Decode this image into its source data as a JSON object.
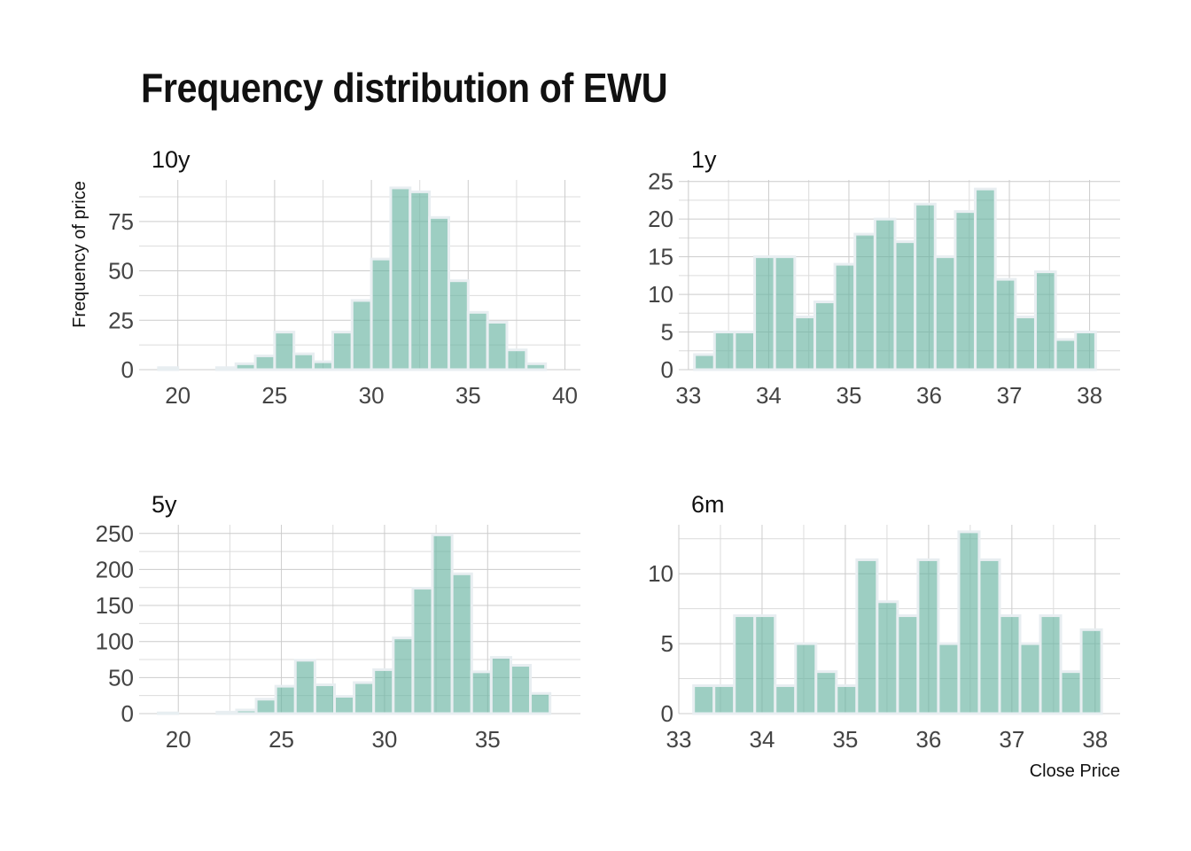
{
  "title": "Frequency distribution of EWU",
  "y_axis_label": "Frequency of price",
  "x_axis_label": "Close Price",
  "colors": {
    "bar_fill": "#69b3a2",
    "bar_outline": "#e8eef1",
    "grid": "#cccccc",
    "text": "#111111"
  },
  "chart_data": [
    {
      "type": "bar",
      "panel": "10y",
      "x_ticks": [
        20,
        25,
        30,
        35,
        40
      ],
      "y_ticks": [
        0,
        25,
        50,
        75
      ],
      "xlim": [
        18.0,
        40.8
      ],
      "ylim": [
        0,
        96
      ],
      "grid": true,
      "bin_width": 1.0,
      "bin_centers": [
        19.5,
        20.5,
        21.5,
        22.5,
        23.5,
        24.5,
        25.5,
        26.5,
        27.5,
        28.5,
        29.5,
        30.5,
        31.5,
        32.5,
        33.5,
        34.5,
        35.5,
        36.5,
        37.5,
        38.5,
        39.5
      ],
      "values": [
        1,
        0,
        0,
        1,
        3,
        7,
        19,
        8,
        4,
        19,
        35,
        56,
        92,
        90,
        77,
        45,
        29,
        24,
        10,
        3,
        0
      ]
    },
    {
      "type": "bar",
      "panel": "1y",
      "x_ticks": [
        33,
        34,
        35,
        36,
        37,
        38
      ],
      "y_ticks": [
        0,
        5,
        10,
        15,
        20,
        25
      ],
      "xlim": [
        32.88,
        38.38
      ],
      "ylim": [
        0,
        25.2
      ],
      "grid": true,
      "bin_width": 0.25,
      "bin_centers": [
        33.2,
        33.45,
        33.7,
        33.95,
        34.2,
        34.45,
        34.7,
        34.95,
        35.2,
        35.45,
        35.7,
        35.95,
        36.2,
        36.45,
        36.7,
        36.95,
        37.2,
        37.45,
        37.7,
        37.95
      ],
      "values": [
        2,
        5,
        5,
        15,
        15,
        7,
        9,
        14,
        18,
        20,
        17,
        22,
        15,
        21,
        24,
        12,
        7,
        13,
        4,
        5
      ]
    },
    {
      "type": "bar",
      "panel": "5y",
      "x_ticks": [
        20,
        25,
        30,
        35
      ],
      "y_ticks": [
        0,
        50,
        100,
        150,
        200,
        250
      ],
      "xlim": [
        18.1,
        39.5
      ],
      "ylim": [
        0,
        262
      ],
      "grid": true,
      "bin_width": 0.95,
      "bin_centers": [
        19.5,
        20.45,
        21.4,
        22.35,
        23.3,
        24.25,
        25.2,
        26.15,
        27.1,
        28.05,
        29.0,
        29.95,
        30.9,
        31.85,
        32.8,
        33.75,
        34.7,
        35.65,
        36.6,
        37.55
      ],
      "values": [
        1,
        0,
        0,
        2,
        5,
        20,
        38,
        74,
        40,
        24,
        43,
        61,
        105,
        174,
        248,
        194,
        58,
        78,
        67,
        28
      ]
    },
    {
      "type": "bar",
      "panel": "6m",
      "x_ticks": [
        33,
        34,
        35,
        36,
        37,
        38
      ],
      "y_ticks": [
        0,
        5,
        10
      ],
      "xlim": [
        33.0,
        38.3
      ],
      "ylim": [
        0,
        13.5
      ],
      "grid": true,
      "bin_width": 0.245,
      "bin_centers": [
        33.3,
        33.545,
        33.79,
        34.035,
        34.28,
        34.525,
        34.77,
        35.015,
        35.26,
        35.505,
        35.75,
        35.995,
        36.24,
        36.485,
        36.73,
        36.975,
        37.22,
        37.465,
        37.71,
        37.955
      ],
      "values": [
        2,
        2,
        7,
        7,
        2,
        5,
        3,
        2,
        11,
        8,
        7,
        11,
        5,
        13,
        11,
        7,
        5,
        7,
        3,
        6
      ]
    }
  ]
}
